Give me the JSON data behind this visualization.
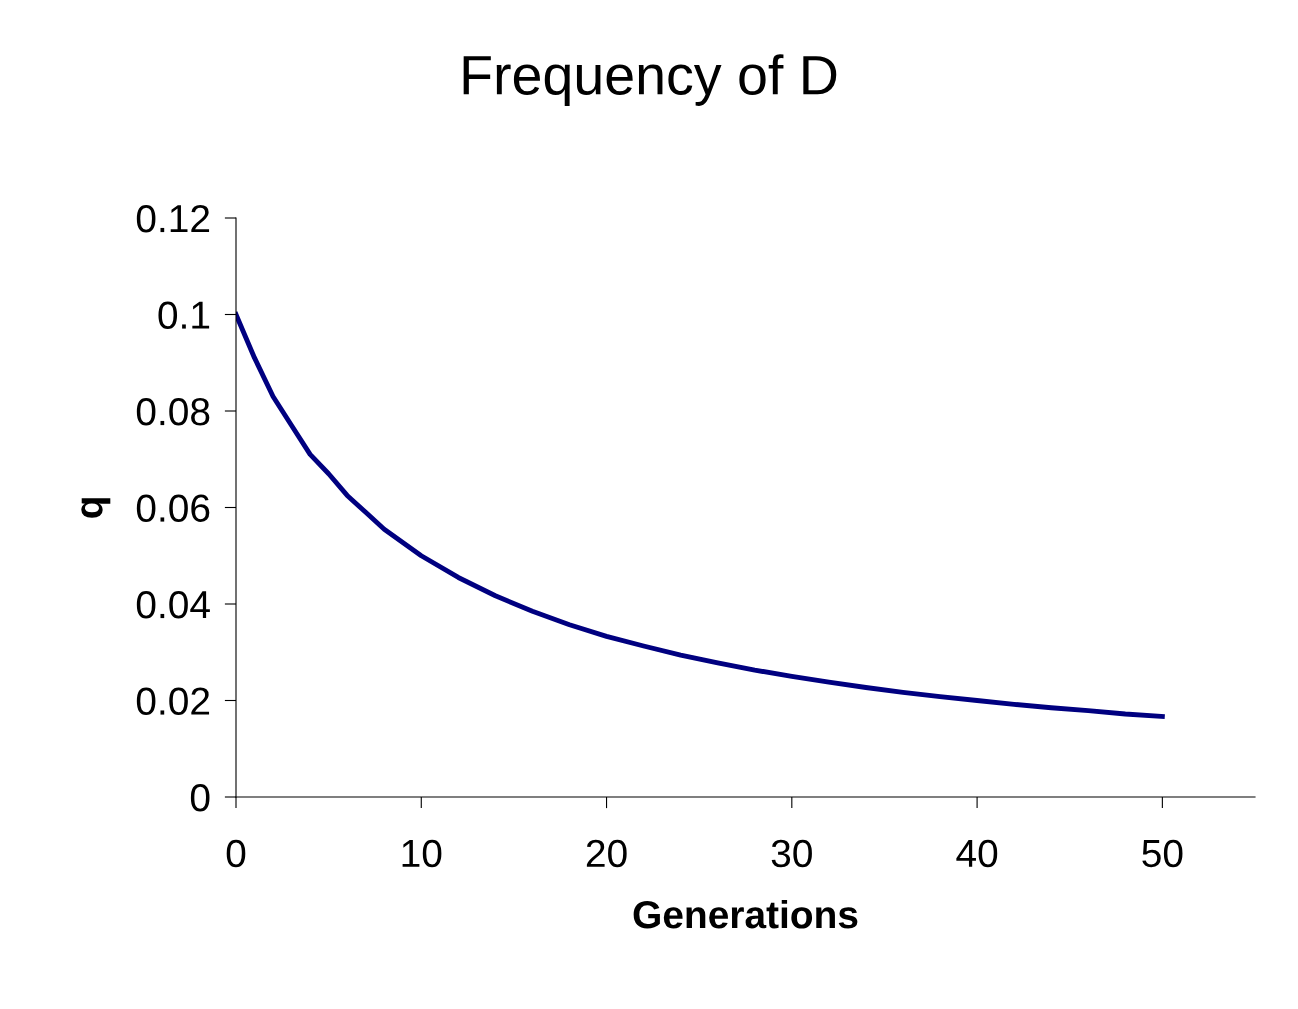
{
  "chart_data": {
    "type": "line",
    "title": "Frequency of D",
    "xlabel": "Generations",
    "ylabel": "q",
    "x": [
      0,
      1,
      2,
      3,
      4,
      5,
      6,
      7,
      8,
      10,
      12,
      14,
      16,
      18,
      20,
      22,
      24,
      26,
      28,
      30,
      32,
      34,
      36,
      38,
      40,
      42,
      44,
      46,
      48,
      50
    ],
    "series": [
      {
        "color": "#000080",
        "values": [
          0.1,
          0.091,
          0.083,
          0.077,
          0.071,
          0.067,
          0.0625,
          0.059,
          0.0555,
          0.05,
          0.0455,
          0.0417,
          0.0385,
          0.0357,
          0.0333,
          0.0313,
          0.0294,
          0.0278,
          0.0263,
          0.025,
          0.0238,
          0.0227,
          0.0217,
          0.0208,
          0.02,
          0.0192,
          0.0185,
          0.0179,
          0.0172,
          0.0167
        ]
      }
    ],
    "xlim": [
      0,
      55
    ],
    "xticks": [
      0,
      10,
      20,
      30,
      40,
      50
    ],
    "ylim": [
      0,
      0.12
    ],
    "yticks": [
      0,
      0.02,
      0.04,
      0.06,
      0.08,
      0.1,
      0.12
    ],
    "grid": false,
    "marker": "none",
    "line_style": "solid"
  }
}
